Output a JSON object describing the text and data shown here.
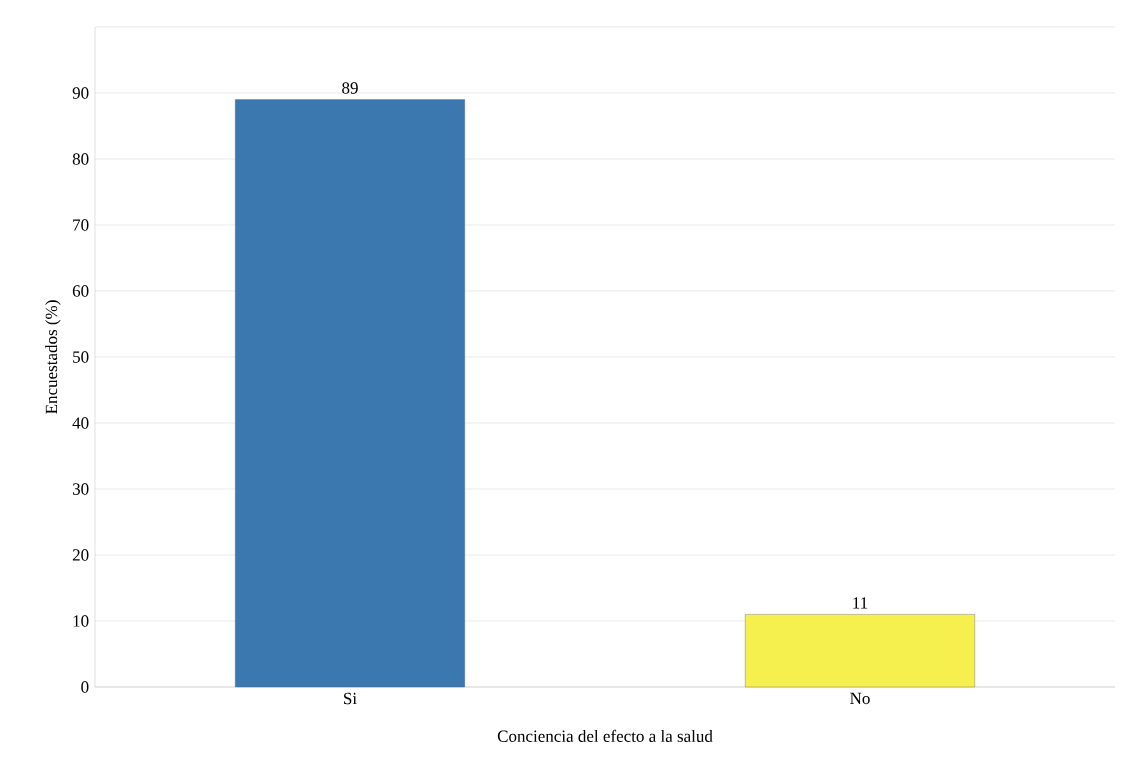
{
  "chart_data": {
    "type": "bar",
    "xlabel": "Conciencia del efecto a la salud",
    "ylabel": "Encuestados (%)",
    "categories": [
      "Si",
      "No"
    ],
    "values": [
      89,
      11
    ],
    "colors": [
      "#3b78b0",
      "#f5f04e"
    ],
    "ylim": [
      0,
      100
    ],
    "yticks": [
      0,
      10,
      20,
      30,
      40,
      50,
      60,
      70,
      80,
      90,
      {
        "value": 100,
        "label": null
      }
    ],
    "grid": "y",
    "data_labels": true
  }
}
